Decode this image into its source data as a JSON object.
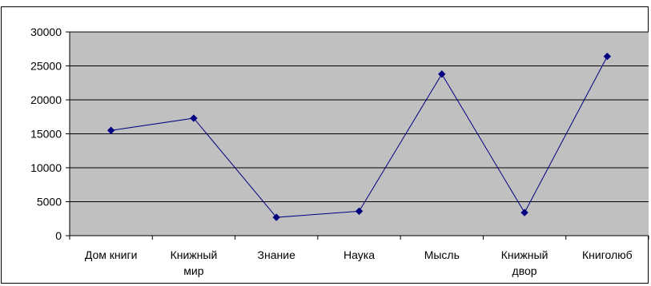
{
  "chart_data": {
    "type": "line",
    "categories": [
      "Дом книги",
      "Книжный мир",
      "Знание",
      "Наука",
      "Мысль",
      "Книжный двор",
      "Книголюб"
    ],
    "series": [
      {
        "values": [
          15500,
          17300,
          2700,
          3600,
          23800,
          3400,
          26400
        ],
        "color": "#000080"
      }
    ],
    "title": "",
    "xlabel": "",
    "ylabel": "",
    "ylim": [
      0,
      30000
    ],
    "yticks": [
      0,
      5000,
      10000,
      15000,
      20000,
      25000,
      30000
    ],
    "grid": true,
    "legend": "none",
    "plot_background": "#c0c0c0"
  }
}
